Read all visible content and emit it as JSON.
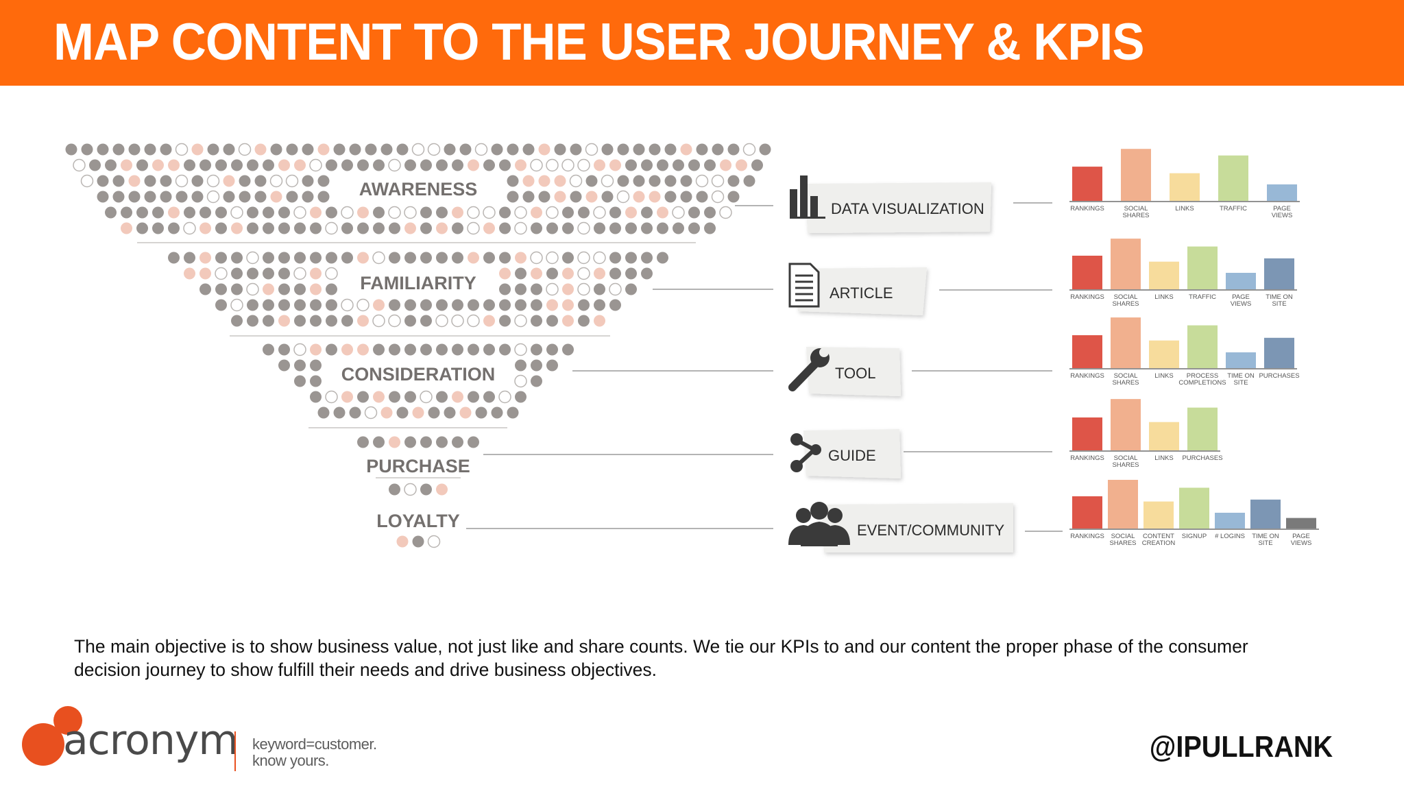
{
  "header": {
    "title": "MAP CONTENT TO THE USER JOURNEY & KPIS",
    "background": "#ff6a0c"
  },
  "funnel": {
    "stages": [
      {
        "label": "AWARENESS"
      },
      {
        "label": "FAMILIARITY"
      },
      {
        "label": "CONSIDERATION"
      },
      {
        "label": "PURCHASE"
      },
      {
        "label": "LOYALTY"
      }
    ],
    "dot_colors": {
      "gray": "#9a9592",
      "pink": "#f2c9bb",
      "outline": "#b9b5b2"
    }
  },
  "content_types": [
    {
      "label": "DATA VISUALIZATION",
      "icon": "bar-chart-icon"
    },
    {
      "label": "ARTICLE",
      "icon": "document-icon"
    },
    {
      "label": "TOOL",
      "icon": "wrench-icon"
    },
    {
      "label": "GUIDE",
      "icon": "share-icon"
    },
    {
      "label": "EVENT/COMMUNITY",
      "icon": "people-icon"
    }
  ],
  "kpi_colors": [
    "#de5548",
    "#f1b08e",
    "#f7dc9c",
    "#c7dc9a",
    "#98b8d6",
    "#7c96b4",
    "#7a7a7a"
  ],
  "chart_data": [
    {
      "type": "bar",
      "categories": [
        "RANKINGS",
        "SOCIAL SHARES",
        "LINKS",
        "TRAFFIC",
        "PAGE VIEWS"
      ],
      "values": [
        0.52,
        0.79,
        0.42,
        0.69,
        0.25
      ],
      "colors": [
        "#de5548",
        "#f1b08e",
        "#f7dc9c",
        "#c7dc9a",
        "#98b8d6"
      ]
    },
    {
      "type": "bar",
      "categories": [
        "RANKINGS",
        "SOCIAL SHARES",
        "LINKS",
        "TRAFFIC",
        "PAGE VIEWS",
        "TIME ON SITE"
      ],
      "values": [
        0.51,
        0.77,
        0.42,
        0.65,
        0.25,
        0.47
      ],
      "colors": [
        "#de5548",
        "#f1b08e",
        "#f7dc9c",
        "#c7dc9a",
        "#98b8d6",
        "#7c96b4"
      ]
    },
    {
      "type": "bar",
      "categories": [
        "RANKINGS",
        "SOCIAL SHARES",
        "LINKS",
        "PROCESS COMPLETIONS",
        "TIME ON SITE",
        "PURCHASES"
      ],
      "values": [
        0.5,
        0.77,
        0.42,
        0.65,
        0.24,
        0.46
      ],
      "colors": [
        "#de5548",
        "#f1b08e",
        "#f7dc9c",
        "#c7dc9a",
        "#98b8d6",
        "#7c96b4"
      ]
    },
    {
      "type": "bar",
      "categories": [
        "RANKINGS",
        "SOCIAL SHARES",
        "LINKS",
        "PURCHASES"
      ],
      "values": [
        0.5,
        0.78,
        0.43,
        0.65
      ],
      "colors": [
        "#de5548",
        "#f1b08e",
        "#f7dc9c",
        "#c7dc9a"
      ]
    },
    {
      "type": "bar",
      "categories": [
        "RANKINGS",
        "SOCIAL SHARES",
        "CONTENT CREATION",
        "SIGNUP",
        "# LOGINS",
        "TIME ON SITE",
        "PAGE VIEWS"
      ],
      "values": [
        0.49,
        0.74,
        0.41,
        0.62,
        0.24,
        0.44,
        0.16
      ],
      "colors": [
        "#de5548",
        "#f1b08e",
        "#f7dc9c",
        "#c7dc9a",
        "#98b8d6",
        "#7c96b4",
        "#7a7a7a"
      ]
    }
  ],
  "caption": "The main objective is to show business value, not just like and share counts. We tie our KPIs to and our content the proper phase of the consumer decision journey to show fulfill their needs and drive business objectives.",
  "logo": {
    "wordmark": "acronym",
    "tagline_line1": "keyword=customer.",
    "tagline_line2": "know yours.",
    "accent": "#e8501f"
  },
  "handle": "@IPULLRANK"
}
